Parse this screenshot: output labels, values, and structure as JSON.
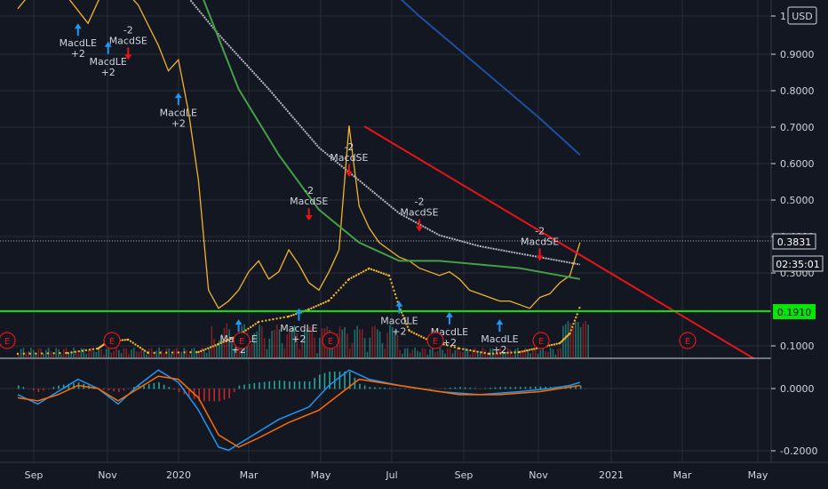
{
  "colors": {
    "background": "#131722",
    "grid": "#2a2e39",
    "price": "#f0b429",
    "ma_gray": "#b2b5be",
    "ma_green": "#43a047",
    "ma_blue": "#1e4fa0",
    "trendline": "#e8141a",
    "support": "#00e600",
    "buy_arrow": "#2196f3",
    "sell_arrow": "#e8141a",
    "volume_up": "#26a69a",
    "volume_down": "#c62828",
    "macd_line": "#2196f3",
    "signal_line": "#ff6d00"
  },
  "currency_badge": "USD",
  "price_labels": {
    "last": "0.3831",
    "countdown": "02:35:01",
    "support": "0.1910"
  },
  "earnings_marker": "E",
  "chart_data": [
    {
      "type": "line",
      "panel": "price",
      "y_ticks": [
        "1",
        "0.9000",
        "0.8000",
        "0.7000",
        "0.6000",
        "0.5000",
        "0.4000",
        "0.3000",
        "0.1000"
      ],
      "x_ticks": [
        "Sep",
        "Nov",
        "2020",
        "Mar",
        "May",
        "Jul",
        "Sep",
        "Nov",
        "2021",
        "Mar",
        "May"
      ],
      "series": [
        {
          "values": [
            [
              0,
              1.02
            ],
            [
              3,
              1.12
            ],
            [
              5,
              1.05
            ],
            [
              7,
              0.98
            ],
            [
              8,
              1.04
            ],
            [
              9,
              1.09
            ],
            [
              11,
              1.06
            ],
            [
              12,
              1.03
            ],
            [
              14,
              0.92
            ],
            [
              15,
              0.85
            ],
            [
              16,
              0.88
            ],
            [
              17,
              0.74
            ],
            [
              18,
              0.55
            ],
            [
              19,
              0.25
            ],
            [
              20,
              0.2
            ],
            [
              21,
              0.22
            ],
            [
              22,
              0.25
            ],
            [
              23,
              0.3
            ],
            [
              24,
              0.33
            ],
            [
              25,
              0.28
            ],
            [
              26,
              0.3
            ],
            [
              27,
              0.36
            ],
            [
              28,
              0.32
            ],
            [
              29,
              0.27
            ],
            [
              30,
              0.25
            ],
            [
              31,
              0.3
            ],
            [
              32,
              0.36
            ],
            [
              33,
              0.7
            ],
            [
              34,
              0.48
            ],
            [
              35,
              0.42
            ],
            [
              36,
              0.38
            ],
            [
              37,
              0.36
            ],
            [
              38,
              0.34
            ],
            [
              39,
              0.33
            ],
            [
              40,
              0.31
            ],
            [
              41,
              0.3
            ],
            [
              42,
              0.29
            ],
            [
              43,
              0.3
            ],
            [
              44,
              0.28
            ],
            [
              45,
              0.25
            ],
            [
              46,
              0.24
            ],
            [
              47,
              0.23
            ],
            [
              48,
              0.22
            ],
            [
              49,
              0.22
            ],
            [
              50,
              0.21
            ],
            [
              51,
              0.2
            ],
            [
              52,
              0.23
            ],
            [
              53,
              0.24
            ],
            [
              54,
              0.27
            ],
            [
              55,
              0.29
            ],
            [
              56,
              0.38
            ]
          ]
        },
        {
          "values": [
            [
              14,
              1.15
            ],
            [
              20,
              0.95
            ],
            [
              25,
              0.8
            ],
            [
              30,
              0.64
            ],
            [
              34,
              0.55
            ],
            [
              38,
              0.46
            ],
            [
              42,
              0.4
            ],
            [
              46,
              0.37
            ],
            [
              50,
              0.35
            ],
            [
              54,
              0.33
            ],
            [
              56,
              0.32
            ]
          ]
        },
        {
          "values": [
            [
              17,
              1.15
            ],
            [
              22,
              0.8
            ],
            [
              26,
              0.62
            ],
            [
              30,
              0.47
            ],
            [
              34,
              0.38
            ],
            [
              38,
              0.33
            ],
            [
              42,
              0.33
            ],
            [
              46,
              0.32
            ],
            [
              50,
              0.31
            ],
            [
              54,
              0.29
            ],
            [
              56,
              0.28
            ]
          ]
        },
        {
          "values": [
            [
              34,
              1.15
            ],
            [
              40,
              1.0
            ],
            [
              46,
              0.86
            ],
            [
              52,
              0.72
            ],
            [
              56,
              0.62
            ]
          ]
        }
      ]
    },
    {
      "type": "line",
      "panel": "macd",
      "y_ticks": [
        "0.0000",
        "-0.2000"
      ],
      "series": [
        {
          "values": [
            [
              0,
              -0.02
            ],
            [
              2,
              -0.05
            ],
            [
              4,
              -0.01
            ],
            [
              6,
              0.03
            ],
            [
              8,
              0.0
            ],
            [
              10,
              -0.05
            ],
            [
              12,
              0.01
            ],
            [
              14,
              0.06
            ],
            [
              16,
              0.02
            ],
            [
              18,
              -0.07
            ],
            [
              20,
              -0.19
            ],
            [
              21,
              -0.2
            ],
            [
              23,
              -0.16
            ],
            [
              26,
              -0.1
            ],
            [
              29,
              -0.06
            ],
            [
              31,
              0.01
            ],
            [
              33,
              0.06
            ],
            [
              35,
              0.03
            ],
            [
              38,
              0.01
            ],
            [
              42,
              -0.01
            ],
            [
              46,
              -0.02
            ],
            [
              50,
              -0.01
            ],
            [
              53,
              0.0
            ],
            [
              55,
              0.01
            ],
            [
              56,
              0.02
            ]
          ]
        },
        {
          "values": [
            [
              0,
              -0.03
            ],
            [
              2,
              -0.04
            ],
            [
              4,
              -0.02
            ],
            [
              6,
              0.01
            ],
            [
              8,
              0.0
            ],
            [
              10,
              -0.04
            ],
            [
              12,
              0.0
            ],
            [
              14,
              0.04
            ],
            [
              16,
              0.03
            ],
            [
              18,
              -0.03
            ],
            [
              20,
              -0.15
            ],
            [
              22,
              -0.19
            ],
            [
              24,
              -0.16
            ],
            [
              27,
              -0.11
            ],
            [
              30,
              -0.07
            ],
            [
              32,
              -0.02
            ],
            [
              34,
              0.03
            ],
            [
              36,
              0.02
            ],
            [
              40,
              0.0
            ],
            [
              44,
              -0.02
            ],
            [
              48,
              -0.02
            ],
            [
              52,
              -0.01
            ],
            [
              56,
              0.01
            ]
          ]
        }
      ]
    }
  ],
  "signals": [
    {
      "kind": "sell",
      "qty": "-2",
      "name": "MacdSE",
      "x": 11,
      "y": 0.88
    },
    {
      "kind": "buy",
      "qty": "+2",
      "name": "MacdLE",
      "x": 6,
      "y": 0.98
    },
    {
      "kind": "buy",
      "qty": "+2",
      "name": "MacdLE",
      "x": 9,
      "y": 0.93
    },
    {
      "kind": "buy",
      "qty": "+2",
      "name": "MacdLE",
      "x": 16,
      "y": 0.79
    },
    {
      "kind": "sell",
      "qty": "-2",
      "name": "MacdSE",
      "x": 33,
      "y": 0.56
    },
    {
      "kind": "sell",
      "qty": "-2",
      "name": "MacdSE",
      "x": 29,
      "y": 0.44
    },
    {
      "kind": "sell",
      "qty": "-2",
      "name": "MacdSE",
      "x": 40,
      "y": 0.41
    },
    {
      "kind": "sell",
      "qty": "-2",
      "name": "MacdSE",
      "x": 52,
      "y": 0.33
    },
    {
      "kind": "buy",
      "qty": "+2",
      "name": "MacdLE",
      "x": 22,
      "y": 0.17
    },
    {
      "kind": "buy",
      "qty": "+2",
      "name": "MacdLE",
      "x": 28,
      "y": 0.2
    },
    {
      "kind": "buy",
      "qty": "+2",
      "name": "MacdLE",
      "x": 38,
      "y": 0.22
    },
    {
      "kind": "buy",
      "qty": "+2",
      "name": "MacdLE",
      "x": 43,
      "y": 0.19
    },
    {
      "kind": "buy",
      "qty": "+2",
      "name": "MacdLE",
      "x": 48,
      "y": 0.17
    }
  ]
}
